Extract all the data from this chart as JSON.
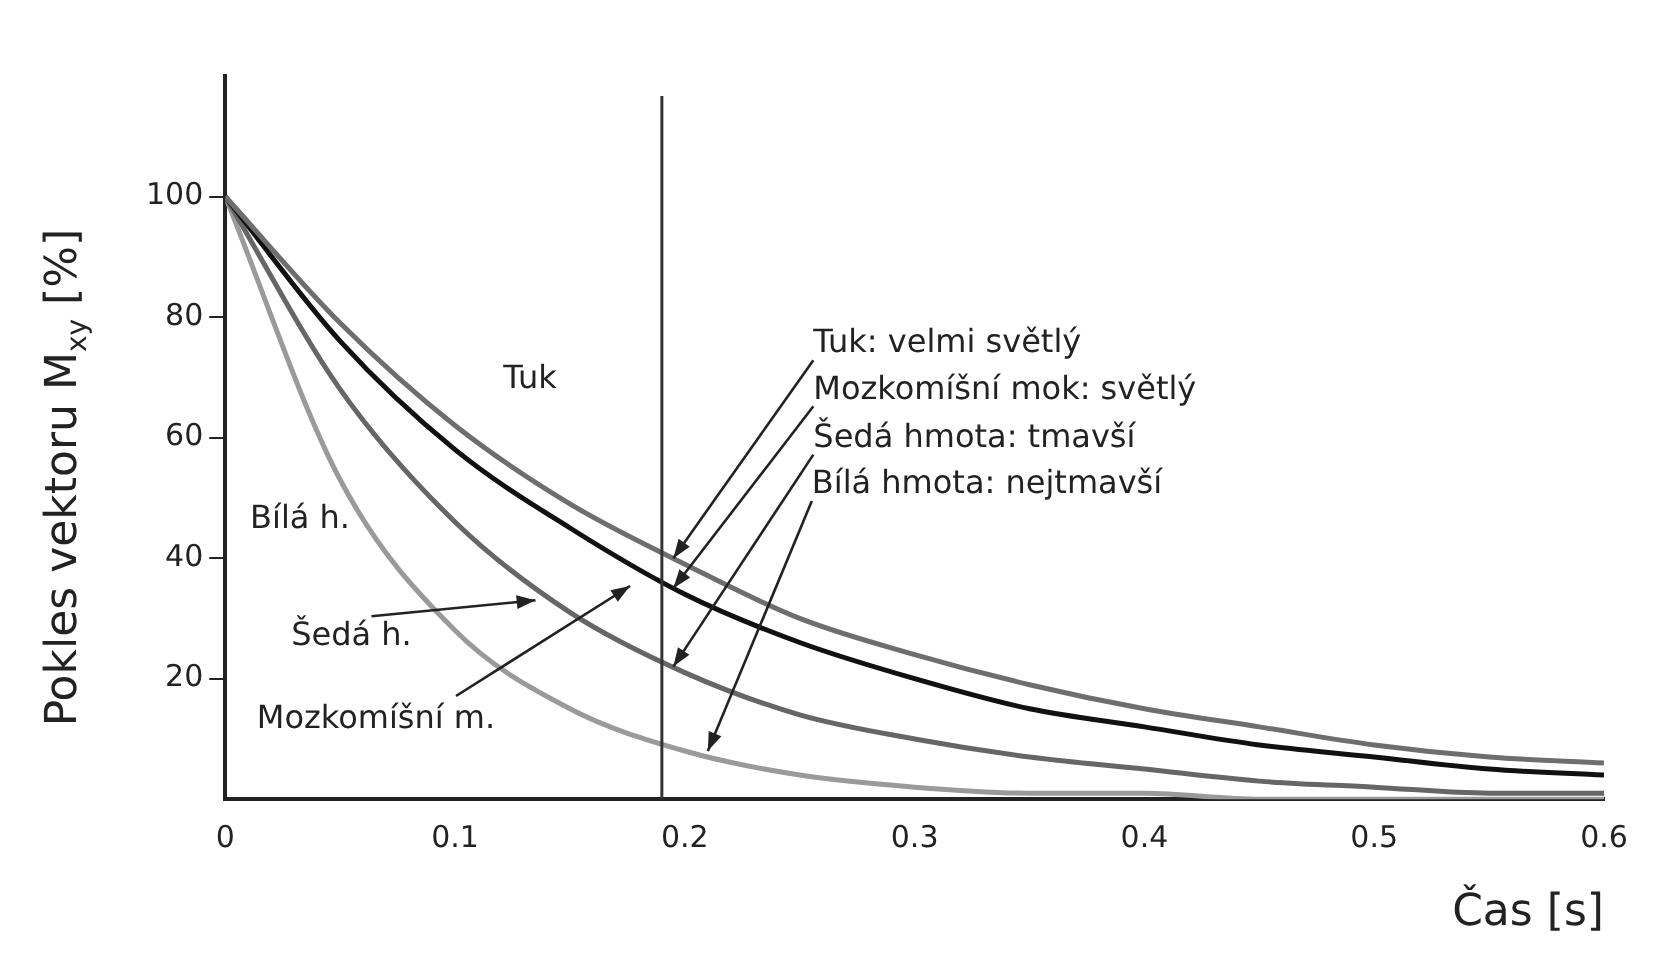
{
  "chart_data": {
    "type": "line",
    "xlabel": "Čas [s]",
    "ylabel": "Pokles vektoru M$_{xy}$ [%]",
    "x": [
      0,
      0.05,
      0.1,
      0.15,
      0.2,
      0.25,
      0.3,
      0.35,
      0.4,
      0.45,
      0.5,
      0.55,
      0.6
    ],
    "series": [
      {
        "color": "#6e6e6e",
        "values": [
          100,
          79,
          62,
          49,
          39,
          30,
          24,
          19,
          15,
          12,
          9,
          7,
          6
        ]
      },
      {
        "color": "#111111",
        "values": [
          100,
          76,
          58,
          45,
          34,
          26,
          20,
          15,
          12,
          9,
          7,
          5,
          4
        ]
      },
      {
        "color": "#666666",
        "values": [
          100,
          68,
          46,
          31,
          21,
          14,
          10,
          7,
          5,
          3,
          2,
          1,
          1
        ]
      },
      {
        "color": "#9a9a9a",
        "values": [
          100,
          53,
          28,
          15,
          8,
          4,
          2,
          1,
          1,
          0,
          0,
          0,
          0
        ]
      }
    ],
    "xlim": [
      0,
      0.6
    ],
    "xticks": [
      0,
      0.1,
      0.2,
      0.3,
      0.4,
      0.5,
      0.6
    ],
    "ylim": [
      0,
      120
    ],
    "yticks": [
      20,
      40,
      60,
      80,
      100
    ],
    "grid": false,
    "legend": false,
    "marker": "none",
    "line_style": "solid",
    "ref_lines": [
      {
        "axis": "x",
        "value": 0.19,
        "color": "#333333"
      }
    ],
    "annotations": [
      "Tuk",
      "Bílá h.",
      {
        "text": "Šedá h.",
        "x": 0.135,
        "y": 33
      },
      "Mozkomíšní m.",
      {
        "text": "Tuk: velmi světlý",
        "x": 0.195,
        "y": 40
      },
      {
        "text": "Mozkomíšní mok: světlý",
        "x": 0.195,
        "y": 35
      },
      {
        "text": "Šedá hmota: tmavší",
        "x": 0.195,
        "y": 22
      },
      {
        "text": "Bílá hmota: nejtmavší",
        "x": 0.21,
        "y": 8
      }
    ]
  }
}
